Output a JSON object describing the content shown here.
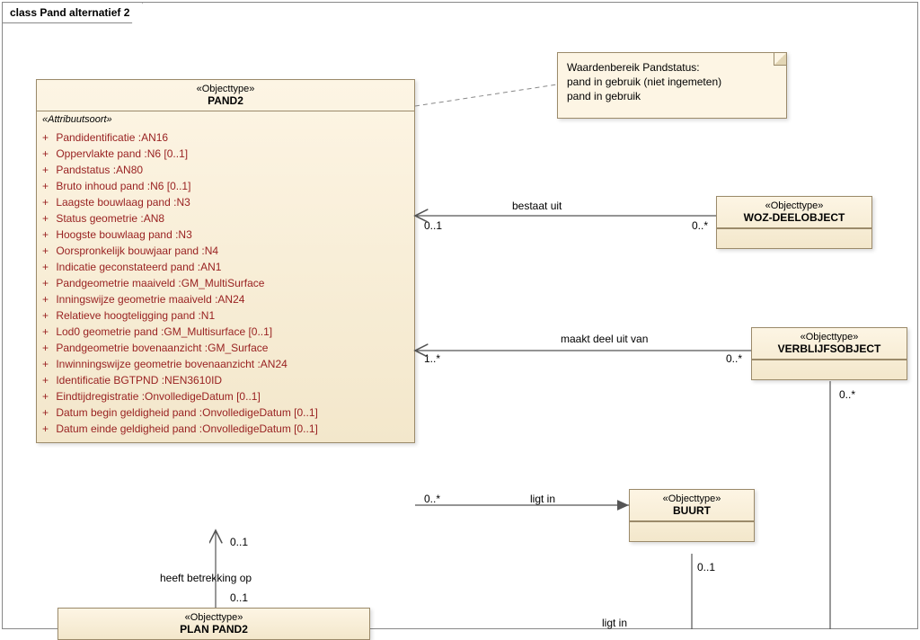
{
  "frame_title": "class Pand alternatief 2",
  "note_lines": [
    "Waardenbereik Pandstatus:",
    "pand in gebruik (niet ingemeten)",
    "pand in gebruik"
  ],
  "stereotype": "«Objecttype»",
  "attr_stereotype": "«Attribuutsoort»",
  "pand2": {
    "name": "PAND2",
    "attrs": [
      "Pandidentificatie :AN16",
      "Oppervlakte pand :N6 [0..1]",
      "Pandstatus :AN80",
      "Bruto inhoud pand :N6 [0..1]",
      "Laagste bouwlaag pand :N3",
      "Status geometrie :AN8",
      "Hoogste bouwlaag pand :N3",
      "Oorspronkelijk bouwjaar pand :N4",
      "Indicatie geconstateerd pand :AN1",
      "Pandgeometrie maaiveld :GM_MultiSurface",
      "Inningswijze geometrie maaiveld :AN24",
      "Relatieve hoogteligging pand :N1",
      "Lod0 geometrie pand :GM_Multisurface [0..1]",
      "Pandgeometrie bovenaanzicht :GM_Surface",
      "Inwinningswijze geometrie bovenaanzicht :AN24",
      "Identificatie BGTPND :NEN3610ID",
      "Eindtijdregistratie :OnvolledigeDatum [0..1]",
      "Datum begin geldigheid pand :OnvolledigeDatum [0..1]",
      "Datum einde geldigheid pand :OnvolledigeDatum [0..1]"
    ]
  },
  "woz": {
    "name": "WOZ-DEELOBJECT"
  },
  "vbo": {
    "name": "VERBLIJFSOBJECT"
  },
  "buurt": {
    "name": "BUURT"
  },
  "plan": {
    "name": "PLAN PAND2"
  },
  "assoc": {
    "bestaat_uit": {
      "label": "bestaat uit",
      "m_left": "0..1",
      "m_right": "0..*"
    },
    "maakt_deel": {
      "label": "maakt deel uit van",
      "m_left": "1..*",
      "m_right": "0..*"
    },
    "ligt_in": {
      "label": "ligt in",
      "m_left": "0..*"
    },
    "betrekking": {
      "label": "heeft betrekking op",
      "m_top": "0..1",
      "m_bottom": "0..1"
    },
    "buurt_m": {
      "m_top": "0..1"
    },
    "vbo_m": {
      "m_bottom": "0..*"
    },
    "ligt_in2": {
      "label": "ligt in"
    }
  },
  "colors": {
    "box_border": "#9b8a6a",
    "box_bg_top": "#fdf5e4",
    "box_bg_bot": "#f3e7cb",
    "attr_text": "#992222",
    "line": "#555555"
  }
}
